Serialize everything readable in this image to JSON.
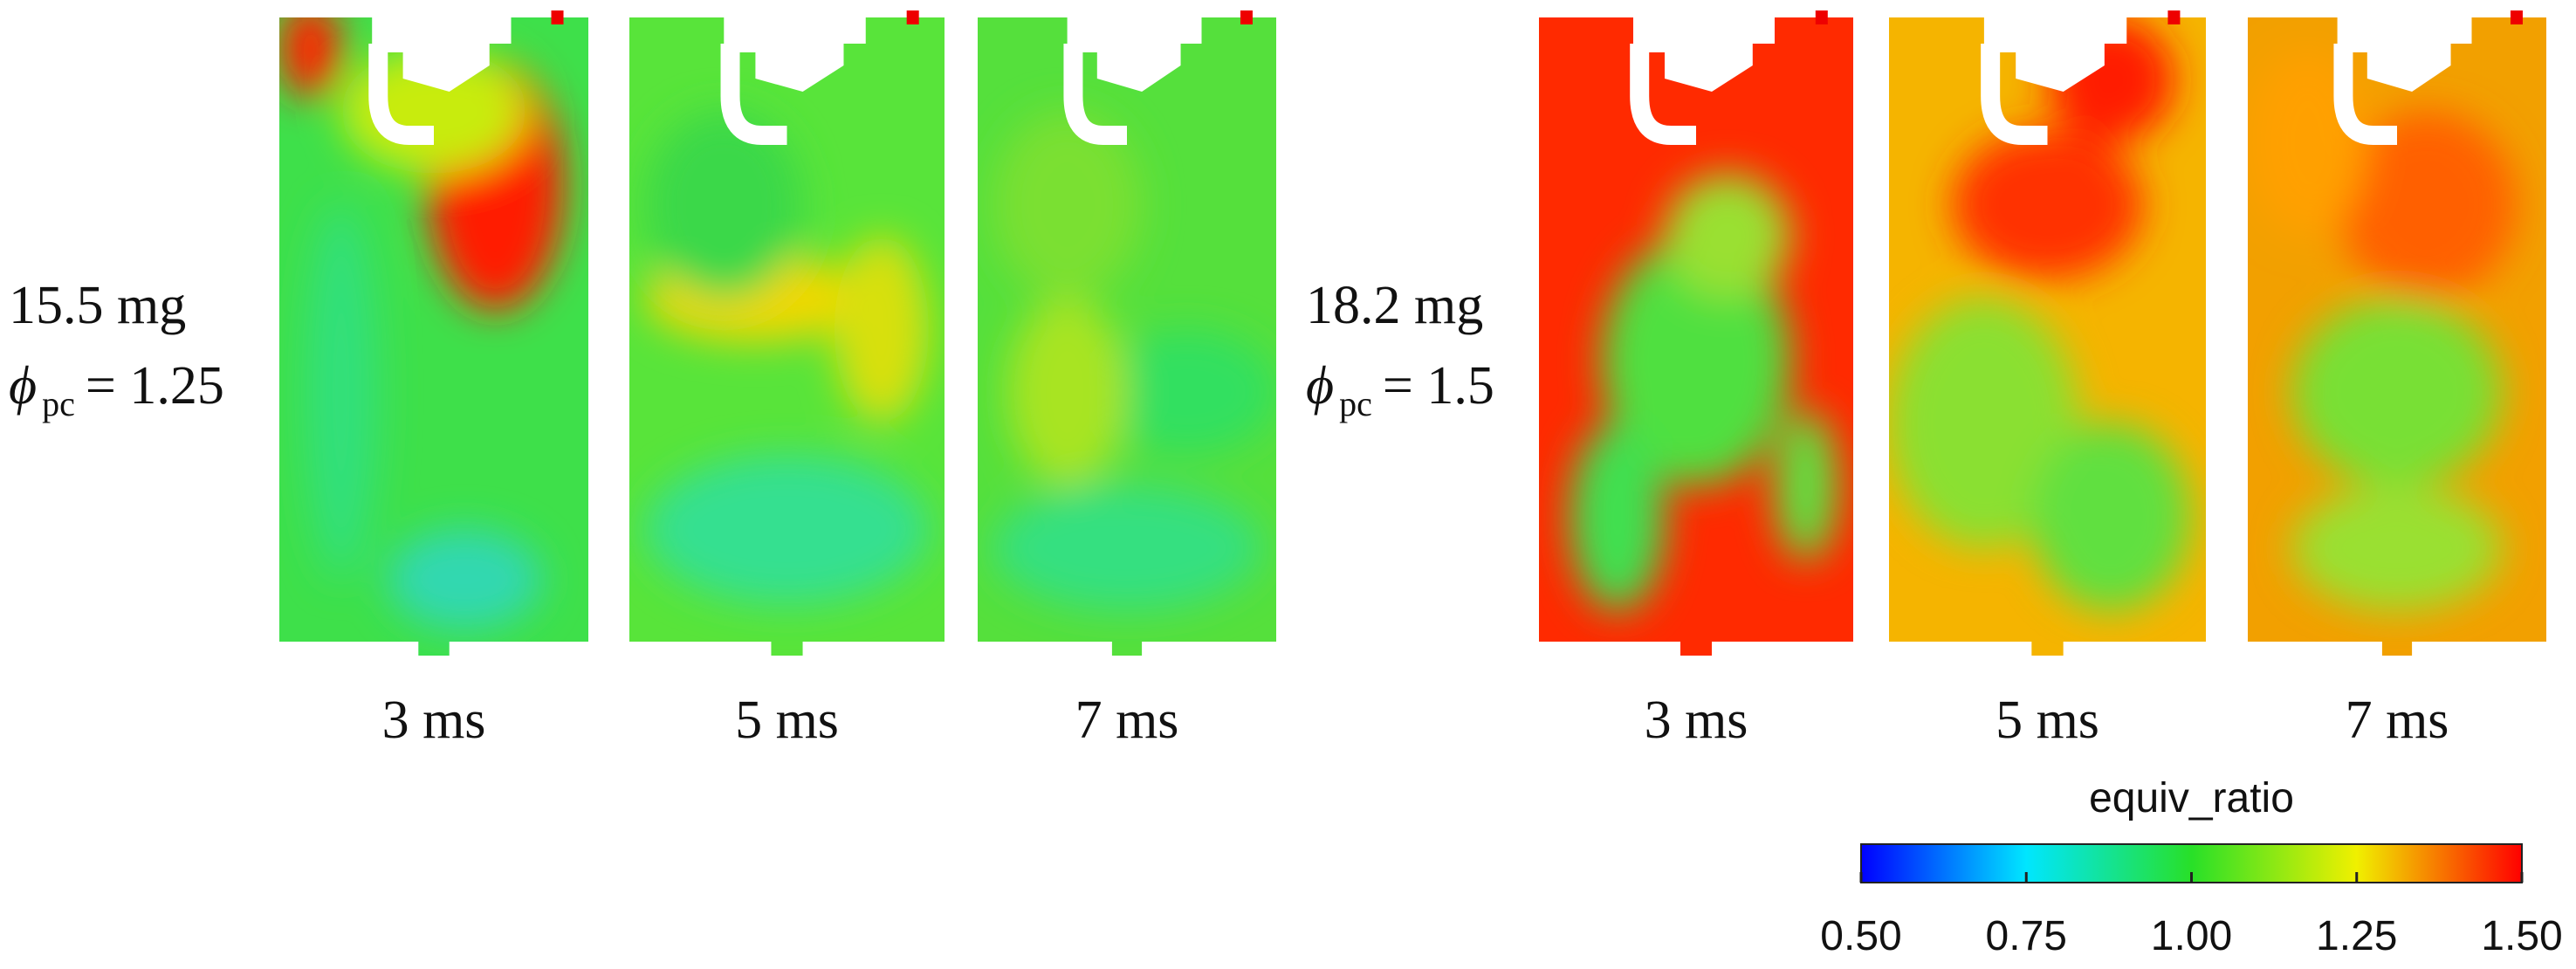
{
  "groups": [
    {
      "mass": "15.5 mg",
      "phi_symbol": "ϕ",
      "phi_subscript": "pc",
      "phi_value": "= 1.25",
      "times": [
        "3 ms",
        "5 ms",
        "7 ms"
      ]
    },
    {
      "mass": "18.2 mg",
      "phi_symbol": "ϕ",
      "phi_subscript": "pc",
      "phi_value": "= 1.5",
      "times": [
        "3 ms",
        "5 ms",
        "7 ms"
      ]
    }
  ],
  "colorbar": {
    "title": "equiv_ratio",
    "range": [
      0.5,
      1.5
    ],
    "ticks": [
      {
        "value": 0.5,
        "label": "0.50"
      },
      {
        "value": 0.75,
        "label": "0.75"
      },
      {
        "value": 1,
        "label": "1.00"
      },
      {
        "value": 1.25,
        "label": "1.25"
      },
      {
        "value": 1.5,
        "label": "1.50"
      }
    ]
  }
}
